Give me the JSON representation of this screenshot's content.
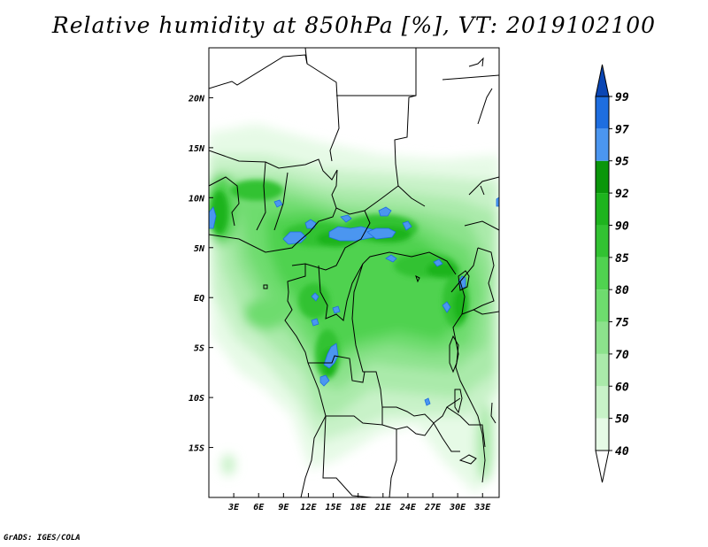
{
  "title": "Relative humidity at 850hPa [%], VT: 2019102100",
  "credit": "GrADS: IGES/COLA",
  "map": {
    "lon_range": [
      0,
      35
    ],
    "lat_range": [
      -20,
      25
    ],
    "lat_ticks": [
      {
        "value": 20,
        "label": "20N"
      },
      {
        "value": 15,
        "label": "15N"
      },
      {
        "value": 10,
        "label": "10N"
      },
      {
        "value": 5,
        "label": "5N"
      },
      {
        "value": 0,
        "label": "EQ"
      },
      {
        "value": -5,
        "label": "5S"
      },
      {
        "value": -10,
        "label": "10S"
      },
      {
        "value": -15,
        "label": "15S"
      }
    ],
    "lon_ticks": [
      {
        "value": 3,
        "label": "3E"
      },
      {
        "value": 6,
        "label": "6E"
      },
      {
        "value": 9,
        "label": "9E"
      },
      {
        "value": 12,
        "label": "12E"
      },
      {
        "value": 15,
        "label": "15E"
      },
      {
        "value": 18,
        "label": "18E"
      },
      {
        "value": 21,
        "label": "21E"
      },
      {
        "value": 24,
        "label": "24E"
      },
      {
        "value": 27,
        "label": "27E"
      },
      {
        "value": 30,
        "label": "30E"
      },
      {
        "value": 33,
        "label": "33E"
      }
    ]
  },
  "colorbar": {
    "levels": [
      {
        "label": "40",
        "color": "#e6fae6"
      },
      {
        "label": "50",
        "color": "#c8f2c8"
      },
      {
        "label": "60",
        "color": "#aaeaaa"
      },
      {
        "label": "70",
        "color": "#8ce28c"
      },
      {
        "label": "75",
        "color": "#6edc6e"
      },
      {
        "label": "80",
        "color": "#50d250"
      },
      {
        "label": "85",
        "color": "#32c232"
      },
      {
        "label": "90",
        "color": "#1eb41e"
      },
      {
        "label": "92",
        "color": "#0a960a"
      },
      {
        "label": "95",
        "color": "#4b96f0"
      },
      {
        "label": "97",
        "color": "#1e6ee0"
      },
      {
        "label": "99",
        "color": "#0a50c8"
      }
    ],
    "below_color": "#ffffff",
    "above_color": "#0a46b4"
  }
}
